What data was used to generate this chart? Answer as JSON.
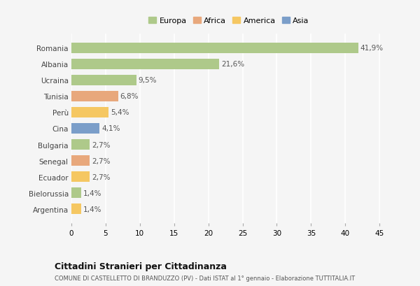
{
  "countries": [
    "Romania",
    "Albania",
    "Ucraina",
    "Tunisia",
    "Perù",
    "Cina",
    "Bulgaria",
    "Senegal",
    "Ecuador",
    "Bielorussia",
    "Argentina"
  ],
  "values": [
    41.9,
    21.6,
    9.5,
    6.8,
    5.4,
    4.1,
    2.7,
    2.7,
    2.7,
    1.4,
    1.4
  ],
  "labels": [
    "41,9%",
    "21,6%",
    "9,5%",
    "6,8%",
    "5,4%",
    "4,1%",
    "2,7%",
    "2,7%",
    "2,7%",
    "1,4%",
    "1,4%"
  ],
  "colors": [
    "#aec98a",
    "#aec98a",
    "#aec98a",
    "#e8a87c",
    "#f5c762",
    "#7b9ec9",
    "#aec98a",
    "#e8a87c",
    "#f5c762",
    "#aec98a",
    "#f5c762"
  ],
  "legend": [
    {
      "label": "Europa",
      "color": "#aec98a"
    },
    {
      "label": "Africa",
      "color": "#e8a87c"
    },
    {
      "label": "America",
      "color": "#f5c762"
    },
    {
      "label": "Asia",
      "color": "#7b9ec9"
    }
  ],
  "xlim": [
    0,
    46
  ],
  "xticks": [
    0,
    5,
    10,
    15,
    20,
    25,
    30,
    35,
    40,
    45
  ],
  "title": "Cittadini Stranieri per Cittadinanza",
  "subtitle": "COMUNE DI CASTELLETTO DI BRANDUZZO (PV) - Dati ISTAT al 1° gennaio - Elaborazione TUTTITALIA.IT",
  "background_color": "#f5f5f5",
  "grid_color": "#ffffff",
  "bar_height": 0.65
}
